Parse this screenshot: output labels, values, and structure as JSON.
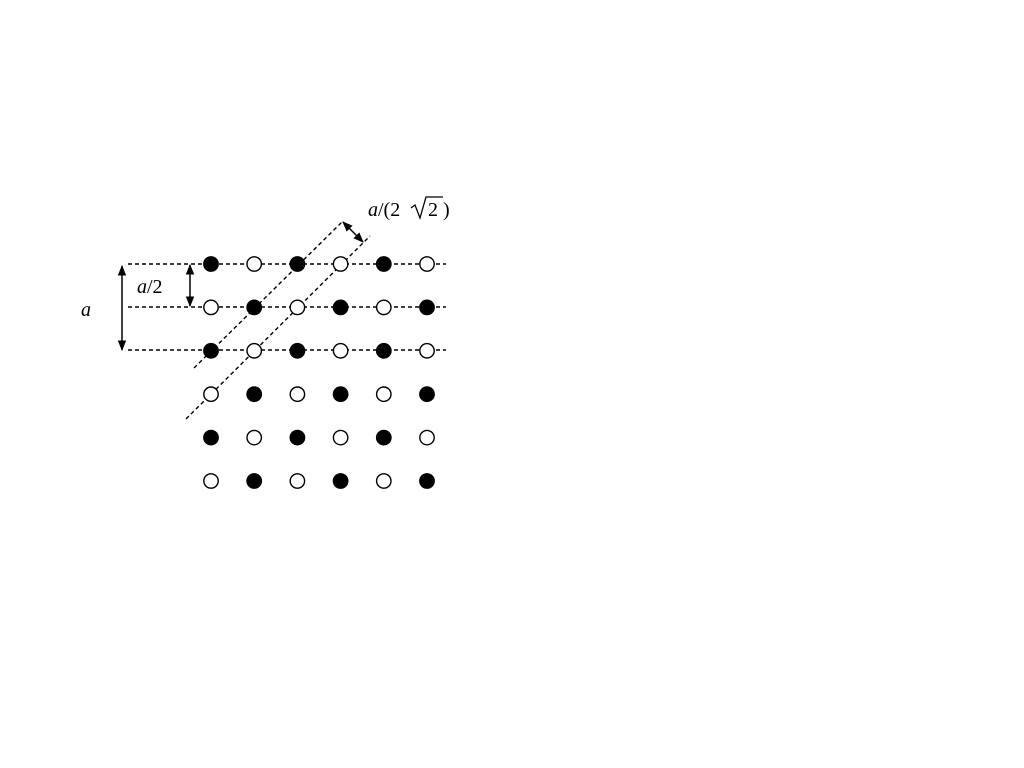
{
  "labels": {
    "lattice_constant": "a",
    "half_spacing_a": "a",
    "half_spacing_rest": "/2",
    "diag_a": "a",
    "diag_open": "/(2",
    "diag_sqrt_arg": "2",
    "diag_close": ")"
  },
  "lattice": {
    "rows": 6,
    "cols": 6,
    "pattern": [
      [
        "filled",
        "open",
        "filled",
        "open",
        "filled",
        "open"
      ],
      [
        "open",
        "filled",
        "open",
        "filled",
        "open",
        "filled"
      ],
      [
        "filled",
        "open",
        "filled",
        "open",
        "filled",
        "open"
      ],
      [
        "open",
        "filled",
        "open",
        "filled",
        "open",
        "filled"
      ],
      [
        "filled",
        "open",
        "filled",
        "open",
        "filled",
        "open"
      ],
      [
        "open",
        "filled",
        "open",
        "filled",
        "open",
        "filled"
      ]
    ]
  },
  "colors": {
    "ink": "#000000",
    "open_fill": "#ffffff"
  }
}
